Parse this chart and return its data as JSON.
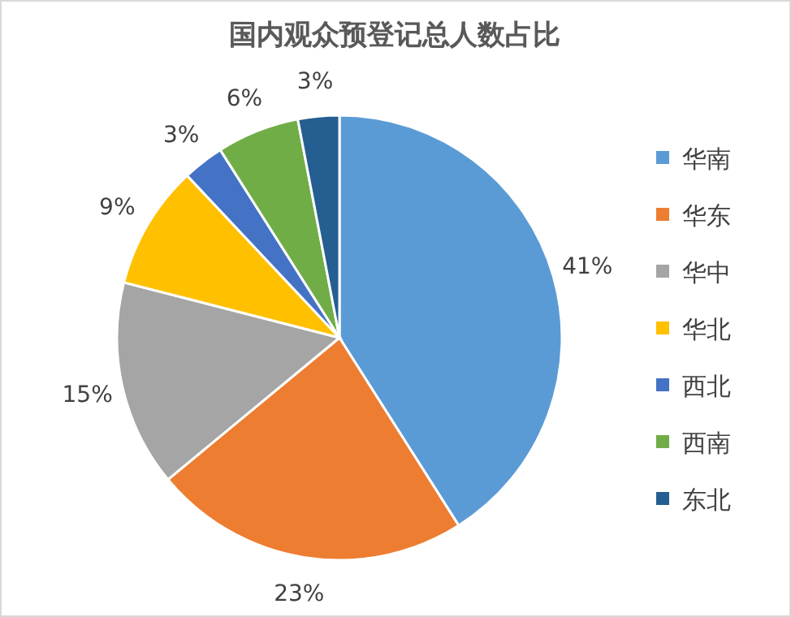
{
  "chart_data": {
    "type": "pie",
    "title": "国内观众预登记总人数占比",
    "categories": [
      "华南",
      "华东",
      "华中",
      "华北",
      "西北",
      "西南",
      "东北"
    ],
    "values": [
      41,
      23,
      15,
      9,
      3,
      6,
      3
    ],
    "colors": [
      "#5b9bd5",
      "#ed7d31",
      "#a5a5a5",
      "#ffc000",
      "#4472c4",
      "#70ad47",
      "#255e91"
    ],
    "value_labels": [
      "41%",
      "23%",
      "15%",
      "9%",
      "3%",
      "6%",
      "3%"
    ],
    "legend": "right"
  }
}
